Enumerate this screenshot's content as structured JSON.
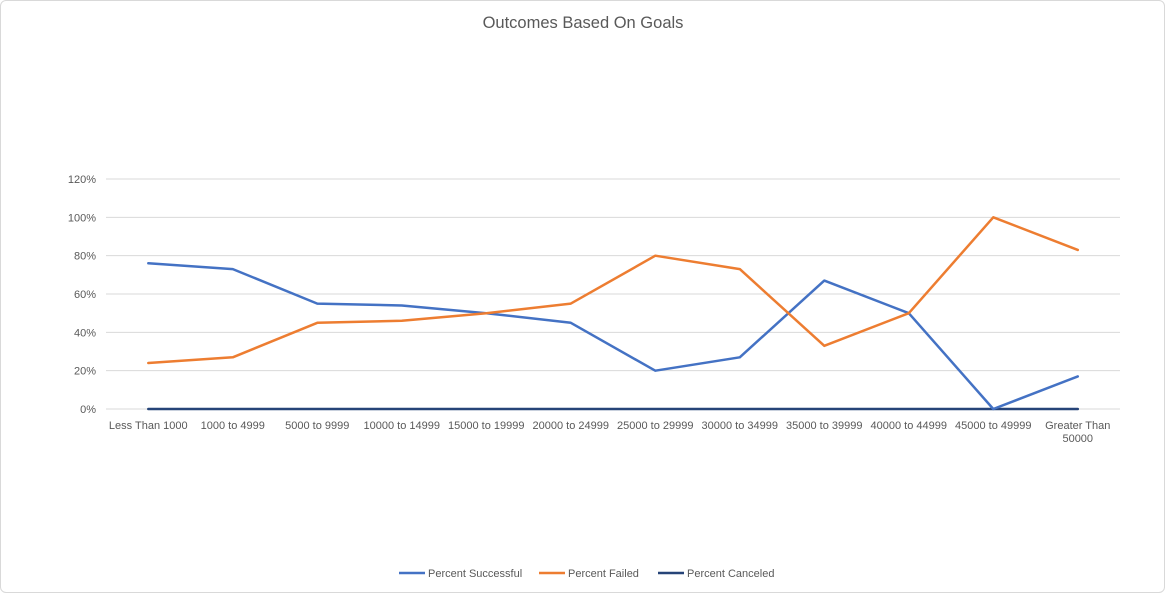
{
  "chart_data": {
    "type": "line",
    "title": "Outcomes Based On Goals",
    "xlabel": "",
    "ylabel": "",
    "categories": [
      "Less Than 1000",
      "1000 to 4999",
      "5000 to 9999",
      "10000 to 14999",
      "15000 to 19999",
      "20000 to 24999",
      "25000 to 29999",
      "30000 to 34999",
      "35000 to 39999",
      "40000 to 44999",
      "45000 to 49999",
      "Greater Than 50000"
    ],
    "category_lines": [
      [
        "Less Than 1000"
      ],
      [
        "1000 to 4999"
      ],
      [
        "5000 to 9999"
      ],
      [
        "10000 to 14999"
      ],
      [
        "15000 to 19999"
      ],
      [
        "20000 to 24999"
      ],
      [
        "25000 to 29999"
      ],
      [
        "30000 to 34999"
      ],
      [
        "35000 to 39999"
      ],
      [
        "40000 to 44999"
      ],
      [
        "45000 to 49999"
      ],
      [
        "Greater Than",
        "50000"
      ]
    ],
    "ylim": [
      0,
      1.2
    ],
    "yticks": [
      0,
      0.2,
      0.4,
      0.6,
      0.8,
      1.0,
      1.2
    ],
    "ytick_labels": [
      "0%",
      "20%",
      "40%",
      "60%",
      "80%",
      "100%",
      "120%"
    ],
    "grid": true,
    "legend_position": "bottom",
    "series": [
      {
        "name": "Percent Successful",
        "color": "#4472c4",
        "values": [
          0.76,
          0.73,
          0.55,
          0.54,
          0.5,
          0.45,
          0.2,
          0.27,
          0.67,
          0.5,
          0.0,
          0.17
        ]
      },
      {
        "name": "Percent Failed",
        "color": "#ed7d31",
        "values": [
          0.24,
          0.27,
          0.45,
          0.46,
          0.5,
          0.55,
          0.8,
          0.73,
          0.33,
          0.5,
          1.0,
          0.83
        ]
      },
      {
        "name": "Percent Canceled",
        "color": "#264478",
        "values": [
          0,
          0,
          0,
          0,
          0,
          0,
          0,
          0,
          0,
          0,
          0,
          0
        ]
      }
    ]
  }
}
